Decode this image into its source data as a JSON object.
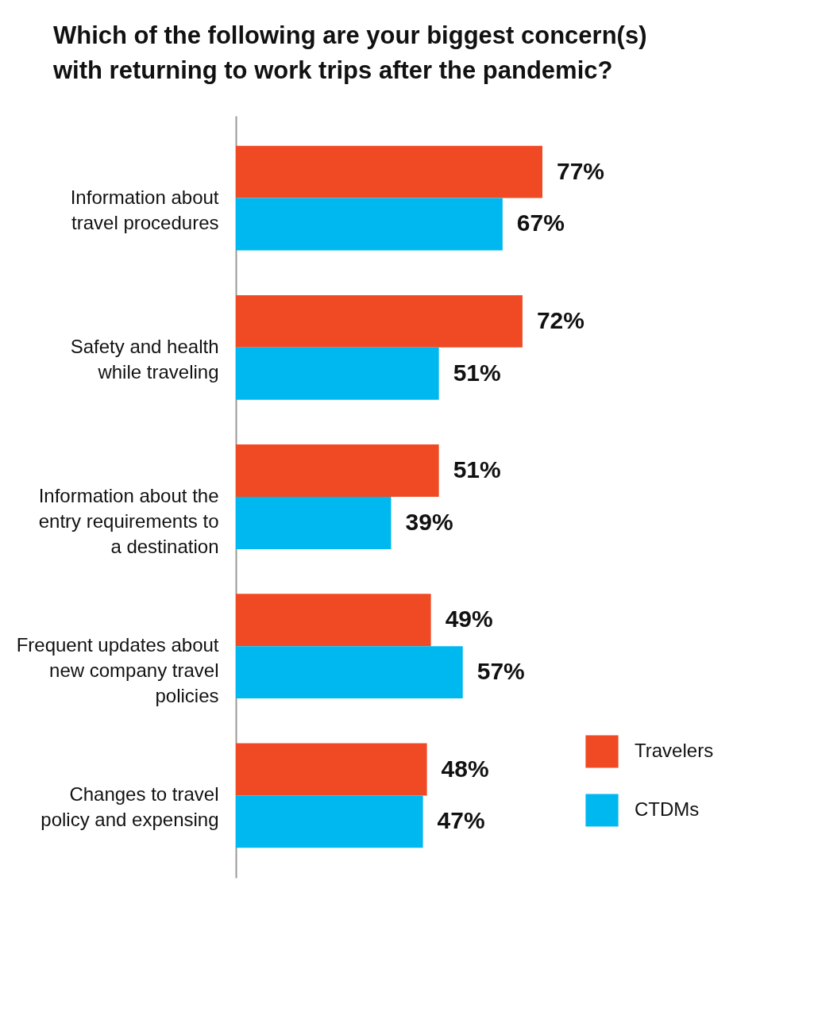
{
  "chart_data": {
    "type": "bar",
    "orientation": "horizontal",
    "title": "Which of the following are your biggest concern(s) with returning to work trips after the pandemic?",
    "categories": [
      "Information about travel procedures",
      "Safety and health while traveling",
      "Information about the entry requirements to a destination",
      "Frequent updates about new company travel policies",
      "Changes to travel policy and expensing"
    ],
    "series": [
      {
        "name": "Travelers",
        "color": "#f04a24",
        "values": [
          77,
          72,
          51,
          49,
          48
        ],
        "value_labels": [
          "77%",
          "72%",
          "51%",
          "49%",
          "48%"
        ]
      },
      {
        "name": "CTDMs",
        "color": "#00b8f0",
        "values": [
          67,
          51,
          39,
          57,
          47
        ],
        "value_labels": [
          "67%",
          "51%",
          "39%",
          "57%",
          "47%"
        ]
      }
    ],
    "legend": "bottom right",
    "grid": false
  }
}
